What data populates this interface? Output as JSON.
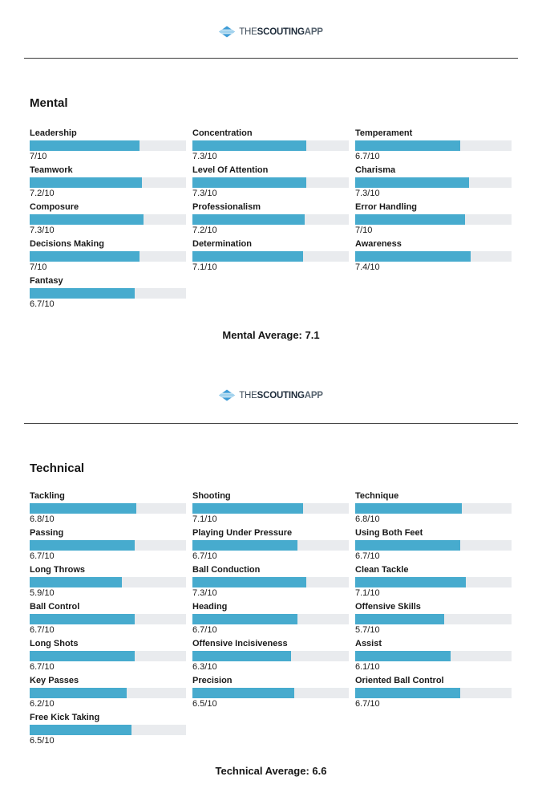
{
  "colors": {
    "bar_fill": "#47abce",
    "bar_track": "#e9ebee",
    "rule": "#3a3a3a",
    "logo_navy": "#1d2b3a",
    "logo_mid": "#3c4a58",
    "logo_gray": "#55626e",
    "icon_blue": "#3e9cd6",
    "icon_light_blue": "#a3d3ee"
  },
  "logo": {
    "the": "THE",
    "scouting": "SCOUTING",
    "app": "APP"
  },
  "sections": [
    {
      "title": "Mental",
      "average": "Mental Average: 7.1",
      "skills": [
        {
          "name": "Leadership",
          "value": 7,
          "display": "7/10"
        },
        {
          "name": "Concentration",
          "value": 7.3,
          "display": "7.3/10"
        },
        {
          "name": "Temperament",
          "value": 6.7,
          "display": "6.7/10"
        },
        {
          "name": "Teamwork",
          "value": 7.2,
          "display": "7.2/10"
        },
        {
          "name": "Level Of Attention",
          "value": 7.3,
          "display": "7.3/10"
        },
        {
          "name": "Charisma",
          "value": 7.3,
          "display": "7.3/10"
        },
        {
          "name": "Composure",
          "value": 7.3,
          "display": "7.3/10"
        },
        {
          "name": "Professionalism",
          "value": 7.2,
          "display": "7.2/10"
        },
        {
          "name": "Error Handling",
          "value": 7,
          "display": "7/10"
        },
        {
          "name": "Decisions Making",
          "value": 7,
          "display": "7/10"
        },
        {
          "name": "Determination",
          "value": 7.1,
          "display": "7.1/10"
        },
        {
          "name": "Awareness",
          "value": 7.4,
          "display": "7.4/10"
        },
        {
          "name": "Fantasy",
          "value": 6.7,
          "display": "6.7/10"
        }
      ]
    },
    {
      "title": "Technical",
      "average": "Technical Average: 6.6",
      "skills": [
        {
          "name": "Tackling",
          "value": 6.8,
          "display": "6.8/10"
        },
        {
          "name": "Shooting",
          "value": 7.1,
          "display": "7.1/10"
        },
        {
          "name": "Technique",
          "value": 6.8,
          "display": "6.8/10"
        },
        {
          "name": "Passing",
          "value": 6.7,
          "display": "6.7/10"
        },
        {
          "name": "Playing Under Pressure",
          "value": 6.7,
          "display": "6.7/10"
        },
        {
          "name": "Using Both Feet",
          "value": 6.7,
          "display": "6.7/10"
        },
        {
          "name": "Long Throws",
          "value": 5.9,
          "display": "5.9/10"
        },
        {
          "name": "Ball Conduction",
          "value": 7.3,
          "display": "7.3/10"
        },
        {
          "name": "Clean Tackle",
          "value": 7.1,
          "display": "7.1/10"
        },
        {
          "name": "Ball Control",
          "value": 6.7,
          "display": "6.7/10"
        },
        {
          "name": "Heading",
          "value": 6.7,
          "display": "6.7/10"
        },
        {
          "name": "Offensive Skills",
          "value": 5.7,
          "display": "5.7/10"
        },
        {
          "name": "Long Shots",
          "value": 6.7,
          "display": "6.7/10"
        },
        {
          "name": "Offensive Incisiveness",
          "value": 6.3,
          "display": "6.3/10"
        },
        {
          "name": "Assist",
          "value": 6.1,
          "display": "6.1/10"
        },
        {
          "name": "Key Passes",
          "value": 6.2,
          "display": "6.2/10"
        },
        {
          "name": "Precision",
          "value": 6.5,
          "display": "6.5/10"
        },
        {
          "name": "Oriented Ball Control",
          "value": 6.7,
          "display": "6.7/10"
        },
        {
          "name": "Free Kick Taking",
          "value": 6.5,
          "display": "6.5/10"
        }
      ]
    }
  ]
}
